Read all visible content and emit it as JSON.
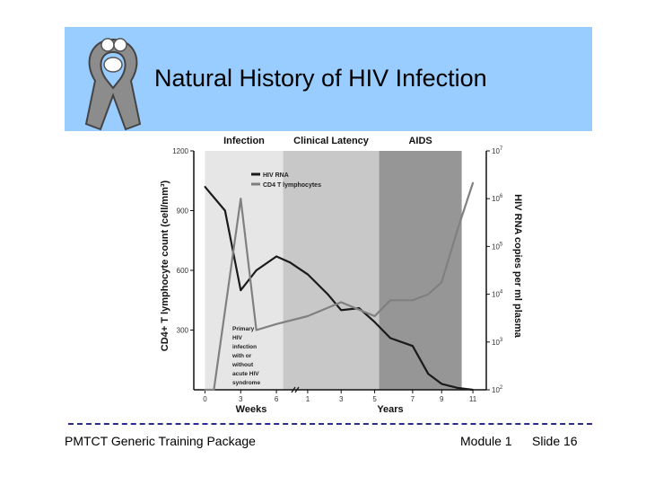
{
  "slide": {
    "title": "Natural History of HIV Infection",
    "footer_left": "PMTCT Generic Training Package",
    "footer_module": "Module 1",
    "footer_slide": "Slide 16",
    "colors": {
      "header_bg": "#99ccff",
      "divider": "#2b2b8f"
    },
    "logo_icon": "awareness-ribbon-with-family-icon"
  },
  "chart_data": {
    "type": "line",
    "phases": [
      {
        "label": "Infection",
        "x": [
          0,
          3.5
        ],
        "shade": "#e6e6e6"
      },
      {
        "label": "Clinical Latency",
        "x": [
          3.5,
          7.8
        ],
        "shade": "#c8c8c8"
      },
      {
        "label": "AIDS",
        "x": [
          7.8,
          11.5
        ],
        "shade": "#969696"
      }
    ],
    "x_ticks": [
      {
        "pos": 0,
        "label": "0"
      },
      {
        "pos": 1.6,
        "label": "3"
      },
      {
        "pos": 3.2,
        "label": "6"
      },
      {
        "pos": 4.6,
        "label": "1"
      },
      {
        "pos": 6.1,
        "label": "3"
      },
      {
        "pos": 7.6,
        "label": "5"
      },
      {
        "pos": 9.3,
        "label": "7"
      },
      {
        "pos": 10.6,
        "label": "9"
      },
      {
        "pos": 12.0,
        "label": "11"
      }
    ],
    "xlabel_weeks": "Weeks",
    "xlabel_years": "Years",
    "ylabel_left": "CD4+ T lymphocyte count (cell/mm³)",
    "ylim_left": [
      0,
      1200
    ],
    "yticks_left": [
      "300",
      "600",
      "900",
      "1200"
    ],
    "ylabel_right": "HIV RNA copies per ml plasma",
    "yticks_right": [
      {
        "base": "10",
        "exp": "2"
      },
      {
        "base": "10",
        "exp": "3"
      },
      {
        "base": "10",
        "exp": "4"
      },
      {
        "base": "10",
        "exp": "5"
      },
      {
        "base": "10",
        "exp": "6"
      },
      {
        "base": "10",
        "exp": "7"
      }
    ],
    "series": [
      {
        "name": "HIV RNA",
        "color": "#1a1a1a",
        "x": [
          0,
          0.9,
          1.6,
          2.3,
          3.2,
          3.8,
          4.6,
          5.5,
          6.1,
          6.9,
          7.6,
          8.3,
          9.3,
          10.0,
          10.6,
          11.3,
          12.0
        ],
        "y": [
          1020,
          900,
          500,
          600,
          670,
          640,
          580,
          480,
          400,
          410,
          340,
          260,
          220,
          80,
          30,
          10,
          0
        ]
      },
      {
        "name": "CD4 T lymphocytes",
        "color": "#808080",
        "x": [
          0,
          0.4,
          1.6,
          2.3,
          3.2,
          4.6,
          6.1,
          7.6,
          8.3,
          9.3,
          10.0,
          10.6,
          11.3,
          12.0
        ],
        "y": [
          0,
          0,
          960,
          300,
          330,
          370,
          440,
          370,
          450,
          450,
          480,
          540,
          800,
          1040
        ]
      }
    ],
    "annotation": [
      "Primary",
      "HIV",
      "infection",
      "with or",
      "without",
      "acute HIV",
      "syndrome"
    ],
    "legend_position": "top-left"
  }
}
